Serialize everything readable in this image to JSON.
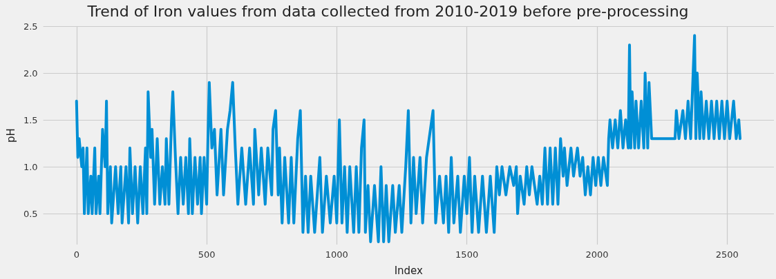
{
  "chart_data": {
    "type": "line",
    "title": "Trend of Iron values from data collected from 2010-2019 before pre-processing",
    "xlabel": "Index",
    "ylabel": "pH",
    "x": [
      0,
      5,
      10,
      20,
      25,
      30,
      40,
      45,
      55,
      60,
      70,
      75,
      85,
      90,
      100,
      110,
      115,
      120,
      130,
      135,
      150,
      160,
      170,
      175,
      190,
      200,
      205,
      215,
      225,
      235,
      245,
      255,
      265,
      270,
      275,
      285,
      290,
      300,
      310,
      320,
      330,
      340,
      345,
      355,
      365,
      370,
      380,
      390,
      400,
      410,
      420,
      430,
      435,
      445,
      455,
      465,
      475,
      480,
      490,
      500,
      505,
      510,
      520,
      530,
      540,
      555,
      565,
      580,
      590,
      600,
      610,
      620,
      635,
      650,
      665,
      680,
      685,
      700,
      710,
      725,
      735,
      750,
      755,
      765,
      775,
      780,
      790,
      800,
      815,
      825,
      835,
      850,
      860,
      870,
      880,
      890,
      900,
      915,
      935,
      945,
      960,
      975,
      990,
      1000,
      1010,
      1020,
      1030,
      1040,
      1050,
      1065,
      1075,
      1085,
      1095,
      1105,
      1110,
      1120,
      1130,
      1145,
      1160,
      1170,
      1180,
      1190,
      1200,
      1215,
      1225,
      1240,
      1250,
      1265,
      1275,
      1285,
      1295,
      1305,
      1320,
      1330,
      1345,
      1355,
      1370,
      1380,
      1395,
      1410,
      1420,
      1430,
      1440,
      1450,
      1465,
      1475,
      1490,
      1500,
      1510,
      1520,
      1530,
      1545,
      1560,
      1575,
      1590,
      1605,
      1615,
      1625,
      1635,
      1650,
      1665,
      1680,
      1690,
      1695,
      1705,
      1720,
      1730,
      1740,
      1750,
      1760,
      1770,
      1780,
      1790,
      1800,
      1810,
      1820,
      1830,
      1840,
      1850,
      1860,
      1870,
      1875,
      1885,
      1900,
      1910,
      1925,
      1935,
      1945,
      1955,
      1965,
      1975,
      1985,
      1995,
      2005,
      2015,
      2025,
      2040,
      2045,
      2050,
      2060,
      2070,
      2080,
      2090,
      2100,
      2110,
      2120,
      2125,
      2130,
      2135,
      2145,
      2150,
      2160,
      2170,
      2180,
      2185,
      2195,
      2200,
      2210,
      2300,
      2305,
      2315,
      2330,
      2340,
      2350,
      2360,
      2375,
      2380,
      2385,
      2395,
      2400,
      2410,
      2420,
      2430,
      2440,
      2450,
      2460,
      2470,
      2480,
      2490,
      2500,
      2510,
      2525,
      2535,
      2545,
      2550
    ],
    "series": [
      {
        "color": "#008fd5",
        "values": [
          1.7,
          1.1,
          1.3,
          1.0,
          1.2,
          0.5,
          1.2,
          0.5,
          0.9,
          0.5,
          1.2,
          0.5,
          0.9,
          0.5,
          1.4,
          1.0,
          1.7,
          0.5,
          1.0,
          0.4,
          1.0,
          0.5,
          1.0,
          0.4,
          1.0,
          0.4,
          1.2,
          0.5,
          1.0,
          0.4,
          1.0,
          0.5,
          1.2,
          0.5,
          1.8,
          1.1,
          1.4,
          0.6,
          1.3,
          0.6,
          1.0,
          0.6,
          1.3,
          0.6,
          1.5,
          1.8,
          1.1,
          0.5,
          1.1,
          0.6,
          1.1,
          0.5,
          1.3,
          0.5,
          1.1,
          0.6,
          1.1,
          0.5,
          1.1,
          0.6,
          1.3,
          1.9,
          1.2,
          1.4,
          0.7,
          1.4,
          0.7,
          1.4,
          1.6,
          1.9,
          1.2,
          0.6,
          1.2,
          0.6,
          1.2,
          0.6,
          1.4,
          0.7,
          1.2,
          0.6,
          1.2,
          0.7,
          1.4,
          1.6,
          0.7,
          1.2,
          0.4,
          1.1,
          0.4,
          1.1,
          0.4,
          1.3,
          1.6,
          0.3,
          0.9,
          0.3,
          0.9,
          0.3,
          1.1,
          0.3,
          0.9,
          0.4,
          0.9,
          0.4,
          1.5,
          0.4,
          1.0,
          0.3,
          1.0,
          0.3,
          1.0,
          0.3,
          1.2,
          1.5,
          0.3,
          0.8,
          0.2,
          0.8,
          0.2,
          1.0,
          0.2,
          0.8,
          0.2,
          0.8,
          0.3,
          0.8,
          0.3,
          1.0,
          1.6,
          0.4,
          1.1,
          0.5,
          1.1,
          0.4,
          1.1,
          1.3,
          1.6,
          0.4,
          0.9,
          0.4,
          0.9,
          0.3,
          1.1,
          0.4,
          0.9,
          0.3,
          0.9,
          0.5,
          1.1,
          0.3,
          0.9,
          0.3,
          0.9,
          0.3,
          0.9,
          0.3,
          1.0,
          0.7,
          1.0,
          0.7,
          1.0,
          0.8,
          1.0,
          0.5,
          0.9,
          0.6,
          1.0,
          0.7,
          1.0,
          0.8,
          0.6,
          0.9,
          0.6,
          1.2,
          0.6,
          1.2,
          0.6,
          1.2,
          0.6,
          1.3,
          0.9,
          1.2,
          0.8,
          1.2,
          0.9,
          1.2,
          0.9,
          1.1,
          0.7,
          1.0,
          0.7,
          1.1,
          0.8,
          1.1,
          0.8,
          1.1,
          0.8,
          1.3,
          1.5,
          1.2,
          1.5,
          1.2,
          1.6,
          1.2,
          1.5,
          1.2,
          2.3,
          1.2,
          1.8,
          1.2,
          1.7,
          1.2,
          1.7,
          1.2,
          2.0,
          1.2,
          1.9,
          1.3,
          1.3,
          1.6,
          1.3,
          1.6,
          1.3,
          1.7,
          1.3,
          2.4,
          1.3,
          2.0,
          1.3,
          1.8,
          1.3,
          1.7,
          1.3,
          1.7,
          1.3,
          1.7,
          1.3,
          1.7,
          1.3,
          1.7,
          1.3,
          1.7,
          1.3,
          1.5,
          1.3
        ]
      }
    ],
    "xlim": [
      -128,
      2680
    ],
    "xticks": [
      0,
      500,
      1000,
      1500,
      2000,
      2500
    ],
    "ylim": [
      0.17,
      2.5
    ],
    "yticks": [
      {
        "value": 0.5,
        "label": "0.5"
      },
      {
        "value": 1.0,
        "label": "1.0"
      },
      {
        "value": 1.5,
        "label": "1.5"
      },
      {
        "value": 2.0,
        "label": "2.0"
      },
      {
        "value": 2.5,
        "label": "2.5"
      }
    ],
    "grid": true,
    "marker": "none",
    "line_style": "solid"
  }
}
